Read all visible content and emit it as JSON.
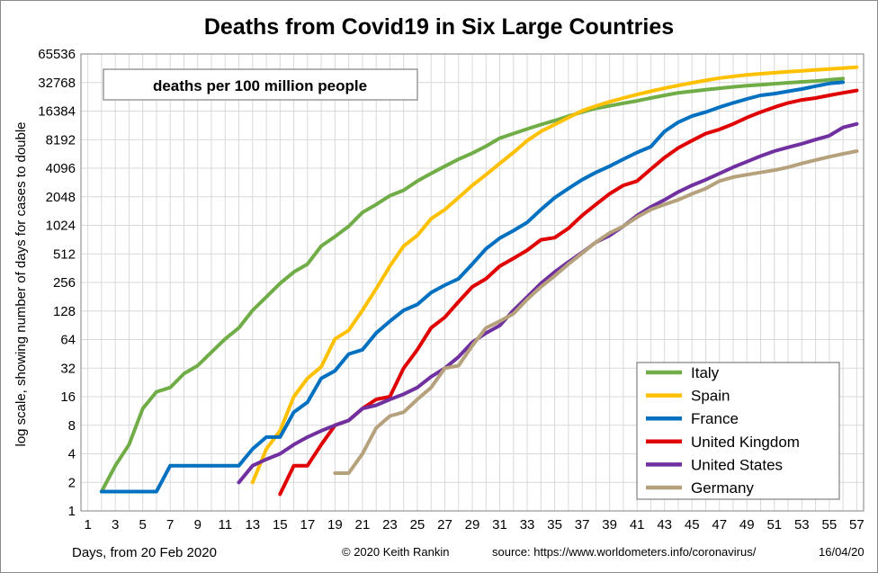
{
  "chart_data": {
    "type": "line",
    "title": "Deaths from Covid19 in Six Large Countries",
    "annotation": "deaths per 100 million  people",
    "xlabel": "Days, from 20 Feb 2020",
    "ylabel": "log scale, showing number of days for cases to double",
    "credit": "© 2020  Keith  Rankin",
    "source": "source:  https://www.worldometers.info/coronavirus/",
    "date": "16/04/20",
    "y_scale": "log2",
    "ylim": [
      1,
      65536
    ],
    "y_ticks": [
      1,
      2,
      4,
      8,
      16,
      32,
      64,
      128,
      256,
      512,
      1024,
      2048,
      4096,
      8192,
      16384,
      32768,
      65536
    ],
    "xlim": [
      1,
      57
    ],
    "x_ticks": [
      1,
      3,
      5,
      7,
      9,
      11,
      13,
      15,
      17,
      19,
      21,
      23,
      25,
      27,
      29,
      31,
      33,
      35,
      37,
      39,
      41,
      43,
      45,
      47,
      49,
      51,
      53,
      55,
      57
    ],
    "grid": true,
    "legend_position": "bottom-right",
    "series": [
      {
        "name": "Italy",
        "color": "#70ad47",
        "x_start": 2,
        "values": [
          1.6,
          3,
          5,
          12,
          18,
          20,
          28,
          34,
          47,
          65,
          85,
          130,
          180,
          250,
          330,
          400,
          620,
          780,
          1000,
          1400,
          1700,
          2100,
          2400,
          3000,
          3600,
          4300,
          5100,
          5900,
          7000,
          8500,
          9500,
          10600,
          11800,
          13000,
          14500,
          16000,
          17500,
          18600,
          19800,
          21000,
          22500,
          24000,
          25500,
          26500,
          27500,
          28500,
          29500,
          30300,
          31000,
          31800,
          32600,
          33300,
          34000,
          35000,
          36000
        ]
      },
      {
        "name": "Spain",
        "color": "#ffc000",
        "x_start": 13,
        "values": [
          2,
          4.5,
          7,
          16,
          25,
          33,
          65,
          80,
          130,
          220,
          380,
          620,
          800,
          1200,
          1500,
          2000,
          2700,
          3500,
          4600,
          6000,
          8000,
          10000,
          11800,
          14000,
          16500,
          18500,
          20500,
          22500,
          24500,
          26500,
          28500,
          30500,
          32500,
          34500,
          36500,
          38000,
          39500,
          40500,
          41500,
          42500,
          43500,
          44500,
          45500,
          46500,
          47500
        ]
      },
      {
        "name": "France",
        "color": "#0070c0",
        "x_start": 2,
        "values": [
          1.6,
          1.6,
          1.6,
          1.6,
          1.6,
          3,
          3,
          3,
          3,
          3,
          3,
          4.5,
          6,
          6,
          11,
          14,
          25,
          30,
          45,
          50,
          75,
          100,
          130,
          150,
          200,
          240,
          280,
          400,
          580,
          750,
          900,
          1100,
          1500,
          2000,
          2500,
          3100,
          3700,
          4300,
          5100,
          6000,
          6900,
          10000,
          12500,
          14500,
          16000,
          18000,
          20000,
          22000,
          24000,
          25000,
          26500,
          28000,
          30000,
          32000,
          33000
        ]
      },
      {
        "name": "United Kingdom",
        "color": "#e00000",
        "x_start": 15,
        "values": [
          1.5,
          3,
          3,
          5,
          8,
          9,
          12,
          15,
          16,
          32,
          50,
          85,
          110,
          160,
          230,
          280,
          380,
          460,
          560,
          720,
          760,
          950,
          1300,
          1700,
          2200,
          2700,
          3000,
          4000,
          5300,
          6700,
          8000,
          9500,
          10500,
          12000,
          14000,
          16000,
          18000,
          20000,
          21500,
          22500,
          24000,
          25500,
          27000
        ]
      },
      {
        "name": "United States",
        "color": "#7030a0",
        "x_start": 12,
        "values": [
          2,
          3,
          3.5,
          4,
          5,
          6,
          7,
          8,
          9,
          12,
          13,
          15,
          17,
          20,
          26,
          32,
          42,
          60,
          75,
          90,
          130,
          180,
          250,
          330,
          420,
          530,
          680,
          800,
          1000,
          1300,
          1600,
          1900,
          2300,
          2700,
          3100,
          3600,
          4200,
          4800,
          5500,
          6200,
          6800,
          7400,
          8200,
          9000,
          11000,
          12000
        ]
      },
      {
        "name": "Germany",
        "color": "#b5a17c",
        "x_start": 19,
        "values": [
          2.5,
          2.5,
          4,
          7.5,
          10,
          11,
          15,
          20,
          32,
          34,
          55,
          85,
          100,
          120,
          170,
          230,
          300,
          400,
          520,
          680,
          850,
          1000,
          1250,
          1500,
          1700,
          1900,
          2200,
          2500,
          3000,
          3300,
          3500,
          3700,
          3900,
          4200,
          4600,
          5000,
          5400,
          5800,
          6200
        ]
      }
    ]
  }
}
